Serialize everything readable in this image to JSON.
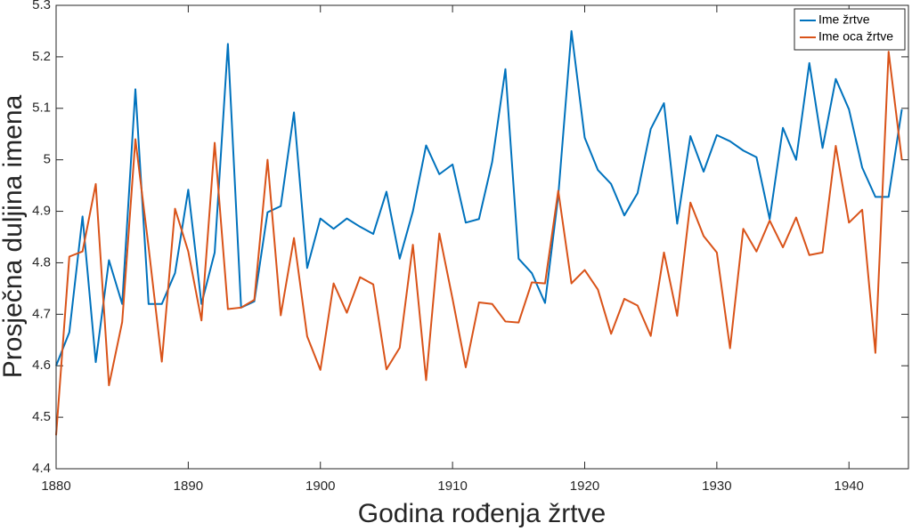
{
  "chart_data": {
    "type": "line",
    "xlabel": "Godina rođenja žrtve",
    "ylabel": "Prosječna duljina imena",
    "x": [
      1880,
      1881,
      1882,
      1883,
      1884,
      1885,
      1886,
      1887,
      1888,
      1889,
      1890,
      1891,
      1892,
      1893,
      1894,
      1895,
      1896,
      1897,
      1898,
      1899,
      1900,
      1901,
      1902,
      1903,
      1904,
      1905,
      1906,
      1907,
      1908,
      1909,
      1910,
      1911,
      1912,
      1913,
      1914,
      1915,
      1916,
      1917,
      1918,
      1919,
      1920,
      1921,
      1922,
      1923,
      1924,
      1925,
      1926,
      1927,
      1928,
      1929,
      1930,
      1931,
      1932,
      1933,
      1934,
      1935,
      1936,
      1937,
      1938,
      1939,
      1940,
      1941,
      1942,
      1943,
      1944
    ],
    "series": [
      {
        "name": "Ime žrtve",
        "color": "#0072BD",
        "values": [
          4.6,
          4.665,
          4.89,
          4.607,
          4.805,
          4.72,
          5.137,
          4.72,
          4.72,
          4.78,
          4.942,
          4.72,
          4.82,
          5.225,
          4.713,
          4.725,
          4.898,
          4.91,
          5.092,
          4.79,
          4.886,
          4.866,
          4.886,
          4.87,
          4.856,
          4.938,
          4.808,
          4.9,
          5.028,
          4.972,
          4.991,
          4.878,
          4.885,
          4.996,
          5.176,
          4.808,
          4.78,
          4.722,
          4.93,
          5.25,
          5.043,
          4.98,
          4.953,
          4.892,
          4.935,
          5.06,
          5.11,
          4.876,
          5.046,
          4.977,
          5.048,
          5.036,
          5.018,
          5.005,
          4.885,
          5.062,
          5.0,
          5.188,
          5.023,
          5.157,
          5.098,
          4.985,
          4.928,
          4.928,
          5.098
        ]
      },
      {
        "name": "Ime oca žrtve",
        "color": "#D95319",
        "values": [
          4.465,
          4.812,
          4.822,
          4.953,
          4.562,
          4.685,
          5.04,
          4.83,
          4.608,
          4.905,
          4.822,
          4.688,
          5.033,
          4.71,
          4.713,
          4.728,
          5.0,
          4.698,
          4.848,
          4.657,
          4.592,
          4.76,
          4.703,
          4.772,
          4.758,
          4.593,
          4.635,
          4.835,
          4.572,
          4.857,
          4.73,
          4.597,
          4.723,
          4.72,
          4.686,
          4.684,
          4.762,
          4.76,
          4.94,
          4.76,
          4.786,
          4.748,
          4.662,
          4.73,
          4.717,
          4.658,
          4.82,
          4.697,
          4.917,
          4.852,
          4.82,
          4.634,
          4.866,
          4.822,
          4.882,
          4.83,
          4.888,
          4.815,
          4.82,
          5.027,
          4.878,
          4.903,
          4.625,
          5.21,
          5.0
        ]
      }
    ],
    "xlim": [
      1880,
      1944.5
    ],
    "ylim": [
      4.4,
      5.3
    ],
    "xticks": [
      1880,
      1890,
      1900,
      1910,
      1920,
      1930,
      1940
    ],
    "yticks": [
      4.4,
      4.5,
      4.6,
      4.7,
      4.8,
      4.9,
      5,
      5.1,
      5.2,
      5.3
    ],
    "legend": "upper right",
    "grid": false
  }
}
